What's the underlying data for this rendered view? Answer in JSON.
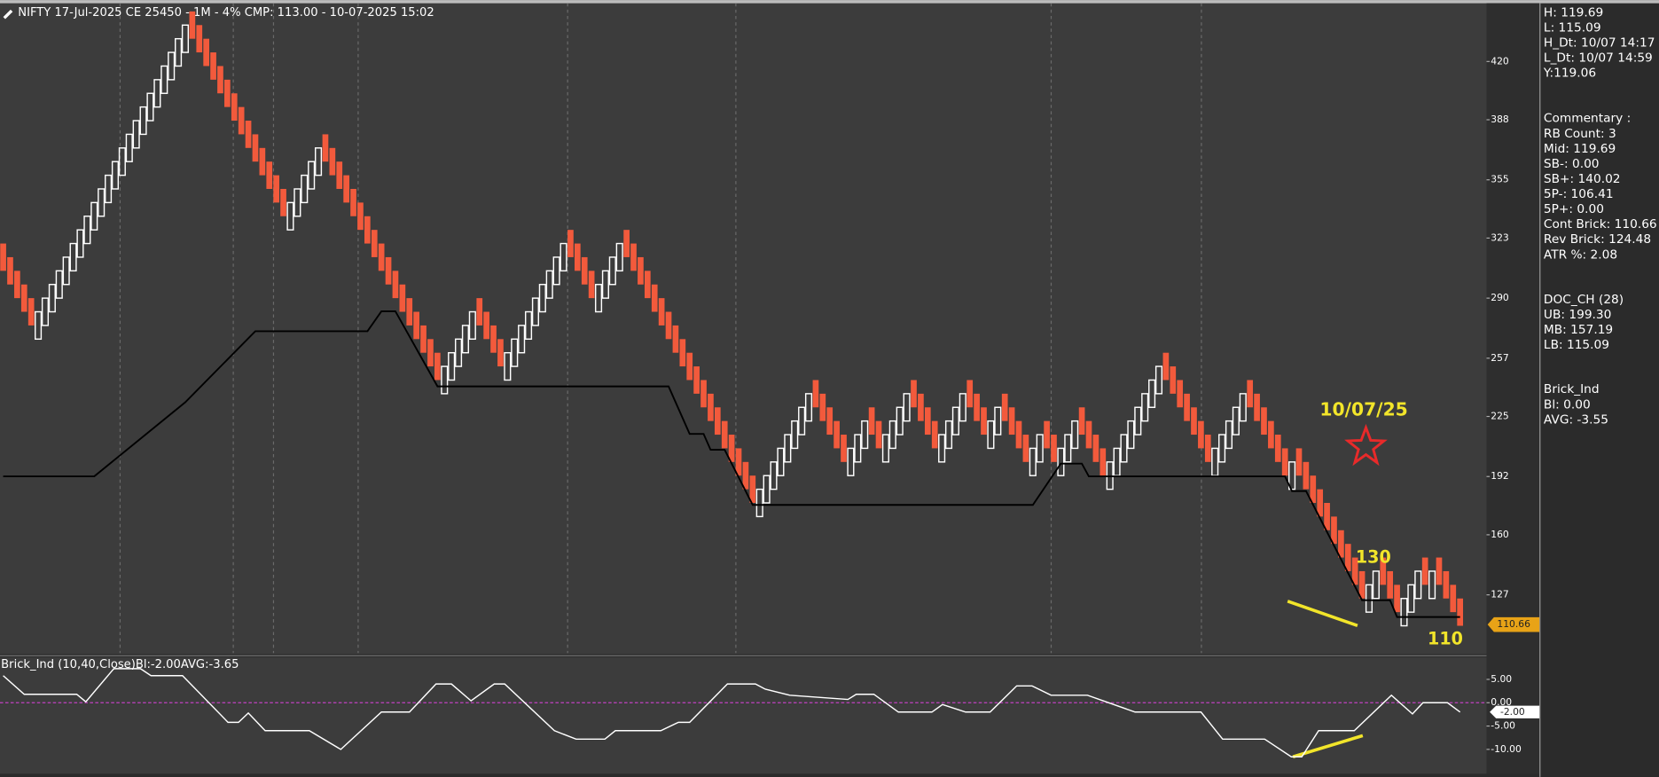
{
  "chart_data": [
    {
      "type": "renko",
      "title": "NIFTY 17-Jul-2025 CE 25450 - 1M - 4% CMP: 113.00 - 10-07-2025 15:02",
      "up_color": "#ffffff",
      "down_color": "#f25a3c",
      "bricks": {
        "close": [
          305,
          297.5,
          290,
          282.5,
          275,
          282.5,
          290,
          297.5,
          305,
          312.5,
          320,
          327.5,
          335,
          342.5,
          350,
          357.5,
          365,
          372.5,
          380,
          387.5,
          395,
          402.5,
          410,
          417.5,
          425,
          432.5,
          440,
          432.5,
          425,
          417.5,
          410,
          402.5,
          395,
          387.5,
          380,
          372.5,
          365,
          357.5,
          350,
          342.5,
          335,
          342.5,
          350,
          357.5,
          365,
          372.5,
          365,
          357.5,
          350,
          342.5,
          335,
          327.5,
          320,
          312.5,
          305,
          297.5,
          290,
          282.5,
          275,
          267.5,
          260,
          252.5,
          245,
          252.5,
          260,
          267.5,
          275,
          282.5,
          275,
          267.5,
          260,
          252.5,
          260,
          267.5,
          275,
          282.5,
          290,
          297.5,
          305,
          312.5,
          320,
          312.5,
          305,
          297.5,
          290,
          297.5,
          305,
          312.5,
          320,
          312.5,
          305,
          297.5,
          290,
          282.5,
          275,
          267.5,
          260,
          252.5,
          245,
          237.5,
          230,
          222.5,
          215,
          207.5,
          200,
          192.5,
          185,
          177.5,
          185,
          192.5,
          200,
          207.5,
          215,
          222.5,
          230,
          237.5,
          230,
          222.5,
          215,
          207.5,
          200,
          207.5,
          215,
          222.5,
          215,
          207.5,
          215,
          222.5,
          230,
          237.5,
          230,
          222.5,
          215,
          207.5,
          215,
          222.5,
          230,
          237.5,
          230,
          222.5,
          215,
          222.5,
          230,
          222.5,
          215,
          207.5,
          200,
          207.5,
          215,
          207.5,
          200,
          207.5,
          215,
          222.5,
          215,
          207.5,
          200,
          192.5,
          200,
          207.5,
          215,
          222.5,
          230,
          237.5,
          245,
          252.5,
          245,
          237.5,
          230,
          222.5,
          215,
          207.5,
          200,
          207.5,
          215,
          222.5,
          230,
          237.5,
          230,
          222.5,
          215,
          207.5,
          200,
          192.5,
          200,
          192.5,
          185,
          177.5,
          170,
          162.5,
          155,
          147.5,
          140,
          132.5,
          125,
          132.5,
          140,
          132.5,
          125,
          117.5,
          125,
          132.5,
          140,
          132.5,
          140,
          132.5,
          125,
          117.5,
          110
        ],
        "open": [
          320,
          312.5,
          305,
          297.5,
          290,
          267.5,
          275,
          282.5,
          290,
          297.5,
          305,
          312.5,
          320,
          327.5,
          335,
          342.5,
          350,
          357.5,
          365,
          372.5,
          380,
          387.5,
          395,
          402.5,
          410,
          417.5,
          425,
          447.5,
          440,
          432.5,
          425,
          417.5,
          410,
          402.5,
          395,
          387.5,
          380,
          372.5,
          365,
          357.5,
          350,
          327.5,
          335,
          342.5,
          350,
          357.5,
          380,
          372.5,
          365,
          357.5,
          350,
          342.5,
          335,
          327.5,
          320,
          312.5,
          305,
          297.5,
          290,
          282.5,
          275,
          267.5,
          260,
          237.5,
          245,
          252.5,
          260,
          267.5,
          290,
          282.5,
          275,
          267.5,
          245,
          252.5,
          260,
          267.5,
          275,
          282.5,
          290,
          297.5,
          305,
          327.5,
          320,
          312.5,
          305,
          282.5,
          290,
          297.5,
          305,
          327.5,
          320,
          312.5,
          305,
          297.5,
          290,
          282.5,
          275,
          267.5,
          260,
          252.5,
          245,
          237.5,
          230,
          222.5,
          215,
          207.5,
          200,
          192.5,
          170,
          177.5,
          185,
          192.5,
          200,
          207.5,
          215,
          222.5,
          245,
          237.5,
          230,
          222.5,
          215,
          192.5,
          200,
          207.5,
          230,
          222.5,
          200,
          207.5,
          215,
          222.5,
          245,
          237.5,
          230,
          222.5,
          200,
          207.5,
          215,
          222.5,
          245,
          237.5,
          230,
          207.5,
          215,
          237.5,
          230,
          222.5,
          215,
          192.5,
          200,
          222.5,
          215,
          192.5,
          200,
          207.5,
          230,
          222.5,
          215,
          207.5,
          185,
          192.5,
          200,
          207.5,
          215,
          222.5,
          230,
          237.5,
          260,
          252.5,
          245,
          237.5,
          230,
          222.5,
          215,
          192.5,
          200,
          207.5,
          215,
          222.5,
          245,
          237.5,
          230,
          222.5,
          215,
          207.5,
          185,
          207.5,
          200,
          192.5,
          185,
          177.5,
          170,
          162.5,
          155,
          147.5,
          140,
          117.5,
          125,
          147.5,
          140,
          132.5,
          110,
          117.5,
          125,
          147.5,
          125,
          147.5,
          140,
          132.5,
          125
        ]
      },
      "lower_band": {
        "color": "#000000",
        "x": [
          0,
          13,
          26,
          36,
          52,
          54,
          56,
          62,
          95,
          98,
          100,
          101,
          103,
          107,
          147,
          151,
          154,
          155,
          183,
          184,
          186,
          194,
          198,
          199,
          208
        ],
        "values": [
          192.1,
          192.1,
          232.8,
          271.8,
          271.8,
          282.8,
          282.8,
          241.5,
          241.5,
          215.4,
          215.4,
          206.7,
          206.7,
          176.4,
          176.4,
          199.1,
          199.1,
          192.1,
          192.1,
          184,
          184,
          124.1,
          124.1,
          114.8,
          114.8
        ]
      },
      "ylim": [
        95,
        452
      ],
      "yticks": [
        420,
        388,
        355,
        323,
        290,
        257,
        225,
        192,
        160,
        127
      ],
      "last_price": {
        "value": 110.66,
        "label": "110.66"
      },
      "annotations": [
        "10/07/25",
        "130",
        "110"
      ]
    },
    {
      "type": "line",
      "title": "Brick_Ind (10,40,Close)Bl:-2.00AVG:-3.65",
      "color": "#ffffff",
      "zero_color": "#c040c0",
      "x": [
        0,
        3,
        10.5,
        11.8,
        15.8,
        19.6,
        21.1,
        25.6,
        32.1,
        33.6,
        35,
        37.4,
        43.7,
        48.2,
        54,
        58,
        61.8,
        64,
        66.8,
        70.1,
        71.6,
        78.7,
        81.8,
        85.9,
        87.4,
        93.9,
        96.4,
        98,
        103.4,
        107.4,
        108.8,
        112.3,
        120.6,
        121.8,
        124.3,
        127.8,
        132.6,
        134.1,
        137.4,
        140.9,
        144.7,
        146.9,
        149.6,
        154.8,
        161.6,
        171,
        174.1,
        180.1,
        183.9,
        185.4,
        187.8,
        192.9,
        198.2,
        201.2,
        202.7,
        206.2,
        208
      ],
      "values": [
        5.8,
        1.8,
        1.8,
        0.2,
        7.3,
        7.3,
        5.8,
        5.8,
        -4.2,
        -4.2,
        -2.2,
        -6,
        -6,
        -10,
        -2,
        -2,
        4,
        4,
        0.4,
        4,
        4,
        -6,
        -7.8,
        -7.8,
        -6,
        -6,
        -4.2,
        -4.2,
        4,
        4,
        2.9,
        1.6,
        0.7,
        1.8,
        1.8,
        -2,
        -2,
        -0.4,
        -2,
        -2,
        3.6,
        3.6,
        1.6,
        1.6,
        -2,
        -2,
        -7.8,
        -7.8,
        -11.6,
        -11.6,
        -6,
        -6,
        1.6,
        -2.4,
        0,
        0,
        -2
      ],
      "ylim": [
        -15,
        9.5
      ],
      "yticks": [
        {
          "value": 5,
          "label": "5.00"
        },
        {
          "value": 0,
          "label": "0.00"
        },
        {
          "value": -5,
          "label": "-5.00"
        },
        {
          "value": -10,
          "label": "-10.00"
        }
      ],
      "last_value": {
        "value": -2,
        "label": "-2.00"
      }
    }
  ],
  "info_panel": [
    [
      "H: 119.69",
      "L: 115.09",
      "H_Dt: 10/07 14:17",
      "L_Dt: 10/07 14:59",
      "Y:119.06"
    ],
    [
      "Commentary :",
      "RB Count: 3",
      "Mid: 119.69",
      "SB-: 0.00",
      "SB+: 140.02",
      "5P-: 106.41",
      "5P+: 0.00",
      "Cont Brick: 110.66",
      "Rev Brick: 124.48",
      "ATR %: 2.08"
    ],
    [
      "DOC_CH (28)",
      "UB: 199.30",
      "MB: 157.19",
      "LB: 115.09"
    ],
    [
      "Brick_Ind",
      "Bl: 0.00",
      "AVG: -3.55"
    ]
  ]
}
